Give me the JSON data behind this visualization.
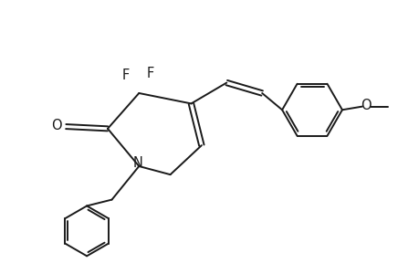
{
  "background_color": "#ffffff",
  "line_color": "#1a1a1a",
  "line_width": 1.4,
  "font_size": 10.5,
  "figsize": [
    4.6,
    3.0
  ],
  "dpi": 100,
  "xlim": [
    0,
    10
  ],
  "ylim": [
    0,
    6.5
  ]
}
